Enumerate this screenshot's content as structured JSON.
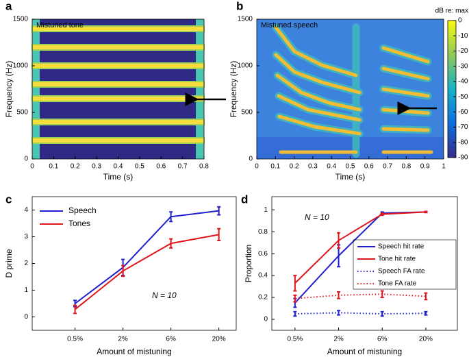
{
  "chart_data": [
    {
      "type": "spectrogram",
      "panel_label": "a",
      "title": "Mistuned tone",
      "xlabel": "Time (s)",
      "ylabel": "Frequency (Hz)",
      "xlim": [
        0,
        0.8
      ],
      "xticks": [
        0,
        0.1,
        0.2,
        0.3,
        0.4,
        0.5,
        0.6,
        0.7,
        0.8
      ],
      "ylim": [
        0,
        1500
      ],
      "yticks": [
        0,
        500,
        1000,
        1500
      ]
    },
    {
      "type": "spectrogram",
      "panel_label": "b",
      "title": "Mistuned speech",
      "xlabel": "Time (s)",
      "ylabel": "Frequency (Hz)",
      "xlim": [
        0,
        1
      ],
      "xticks": [
        0,
        0.1,
        0.2,
        0.3,
        0.4,
        0.5,
        0.6,
        0.7,
        0.8,
        0.9,
        1
      ],
      "ylim": [
        0,
        1500
      ],
      "yticks": [
        0,
        500,
        1000,
        1500
      ],
      "colorbar": {
        "label": "dB re: max",
        "lim": [
          -90,
          0
        ],
        "ticks": [
          0,
          -10,
          -20,
          -30,
          -40,
          -50,
          -60,
          -70,
          -80,
          -90
        ]
      }
    },
    {
      "type": "line",
      "panel_label": "c",
      "xlabel": "Amount of mistuning",
      "ylabel": "D prime",
      "annotation": "N = 10",
      "legend": "upper left",
      "categories": [
        "0.5%",
        "2%",
        "6%",
        "20%"
      ],
      "ylim": [
        -0.5,
        4.5
      ],
      "yticks": [
        0,
        1,
        2,
        3,
        4
      ],
      "series": [
        {
          "name": "Speech",
          "color": "#1f1fd0",
          "style": "solid",
          "values": [
            0.5,
            1.85,
            3.75,
            3.97
          ],
          "errors": [
            0.12,
            0.3,
            0.18,
            0.15
          ]
        },
        {
          "name": "Tones",
          "color": "#e0151b",
          "style": "solid",
          "values": [
            0.28,
            1.72,
            2.75,
            3.08
          ],
          "errors": [
            0.15,
            0.2,
            0.17,
            0.22
          ]
        }
      ]
    },
    {
      "type": "line",
      "panel_label": "d",
      "xlabel": "Amount of mistuning",
      "ylabel": "Proportion",
      "annotation": "N = 10",
      "legend": "right",
      "categories": [
        "0.5%",
        "2%",
        "6%",
        "20%"
      ],
      "ylim": [
        -0.1,
        1.12
      ],
      "yticks": [
        0,
        0.2,
        0.4,
        0.6,
        0.8,
        1
      ],
      "series": [
        {
          "name": "Speech hit rate",
          "color": "#1f1fd0",
          "style": "solid",
          "values": [
            0.15,
            0.58,
            0.97,
            0.98
          ],
          "errors": [
            0.04,
            0.1,
            0.01,
            0.005
          ]
        },
        {
          "name": "Tone hit rate",
          "color": "#e0151b",
          "style": "solid",
          "values": [
            0.33,
            0.72,
            0.96,
            0.98
          ],
          "errors": [
            0.07,
            0.07,
            0.01,
            0.005
          ]
        },
        {
          "name": "Speech FA rate",
          "color": "#1f1fd0",
          "style": "dotted",
          "values": [
            0.05,
            0.06,
            0.05,
            0.055
          ],
          "errors": [
            0.02,
            0.02,
            0.02,
            0.015
          ]
        },
        {
          "name": "Tone FA rate",
          "color": "#e0151b",
          "style": "dotted",
          "values": [
            0.19,
            0.22,
            0.23,
            0.21
          ],
          "errors": [
            0.03,
            0.03,
            0.03,
            0.03
          ]
        }
      ]
    }
  ]
}
